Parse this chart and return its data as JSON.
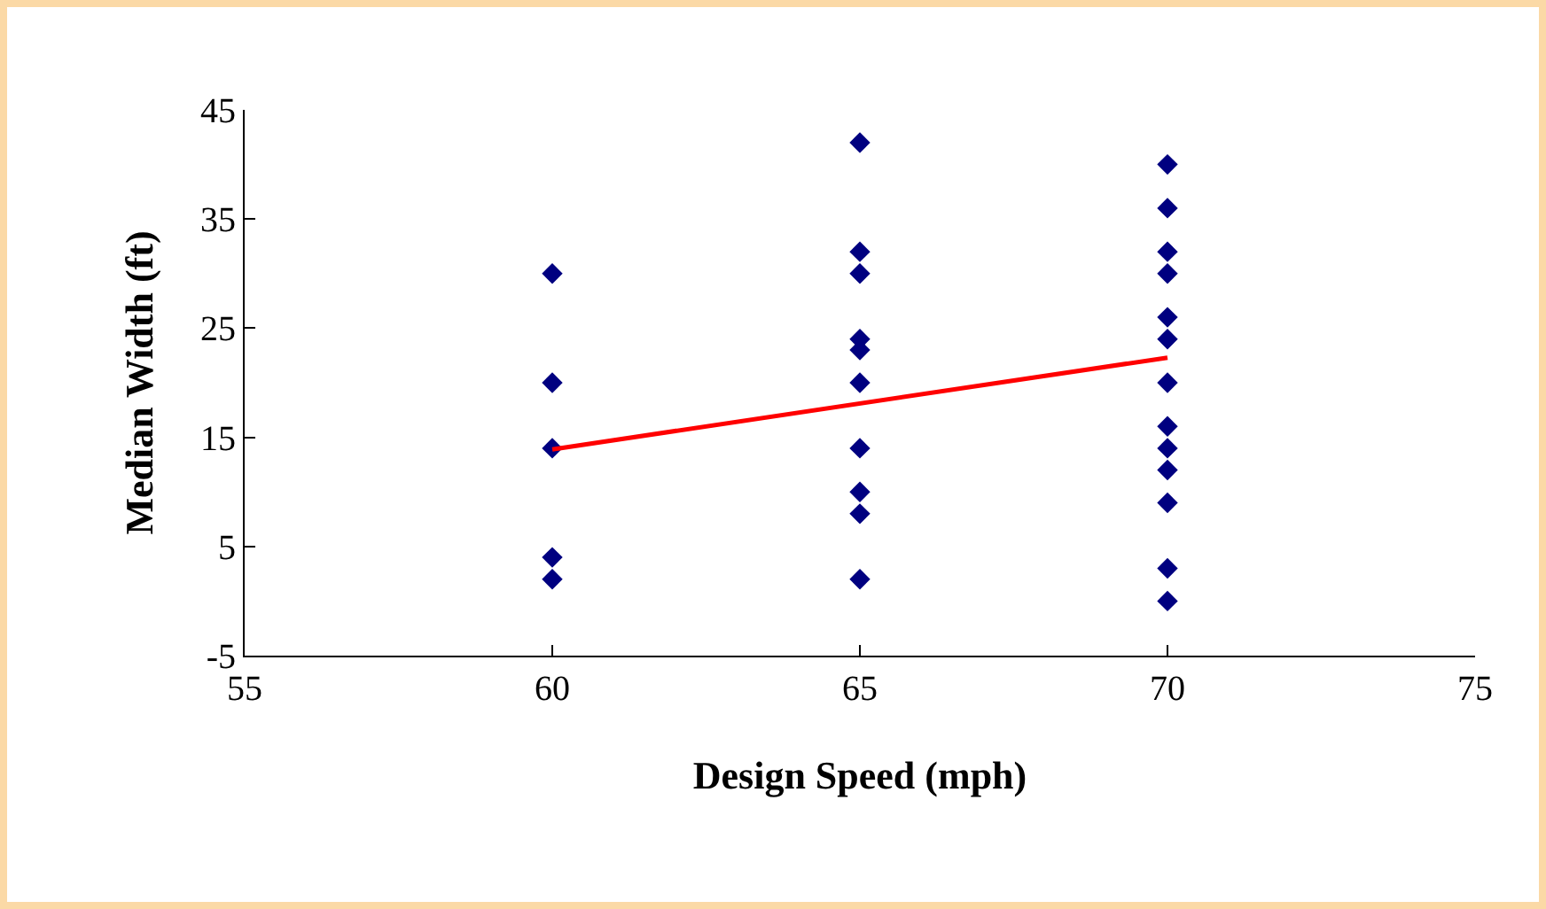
{
  "chart_data": {
    "type": "scatter",
    "xlabel": "Design Speed (mph)",
    "ylabel": "Median Width (ft)",
    "xlim": [
      55,
      75
    ],
    "xticks": [
      55,
      60,
      65,
      70,
      75
    ],
    "ylim": [
      -5,
      45
    ],
    "yticks": [
      -5,
      5,
      15,
      25,
      35,
      45
    ],
    "grid": false,
    "marker": "diamond",
    "series": [
      {
        "color": "#000080",
        "x": [
          60,
          60,
          60,
          60,
          60,
          65,
          65,
          65,
          65,
          65,
          65,
          65,
          65,
          65,
          65,
          70,
          70,
          70,
          70,
          70,
          70,
          70,
          70,
          70,
          70,
          70,
          70,
          70
        ],
        "values": [
          30,
          20,
          14,
          4,
          2,
          42,
          32,
          30,
          24,
          23,
          20,
          14,
          10,
          8,
          2,
          40,
          36,
          32,
          30,
          26,
          24,
          20,
          16,
          14,
          12,
          9,
          3,
          0
        ]
      },
      {
        "type": "line",
        "marker": "none",
        "color": "#ff0000",
        "x": [
          60,
          70
        ],
        "values": [
          13.9,
          22.3
        ]
      }
    ]
  }
}
